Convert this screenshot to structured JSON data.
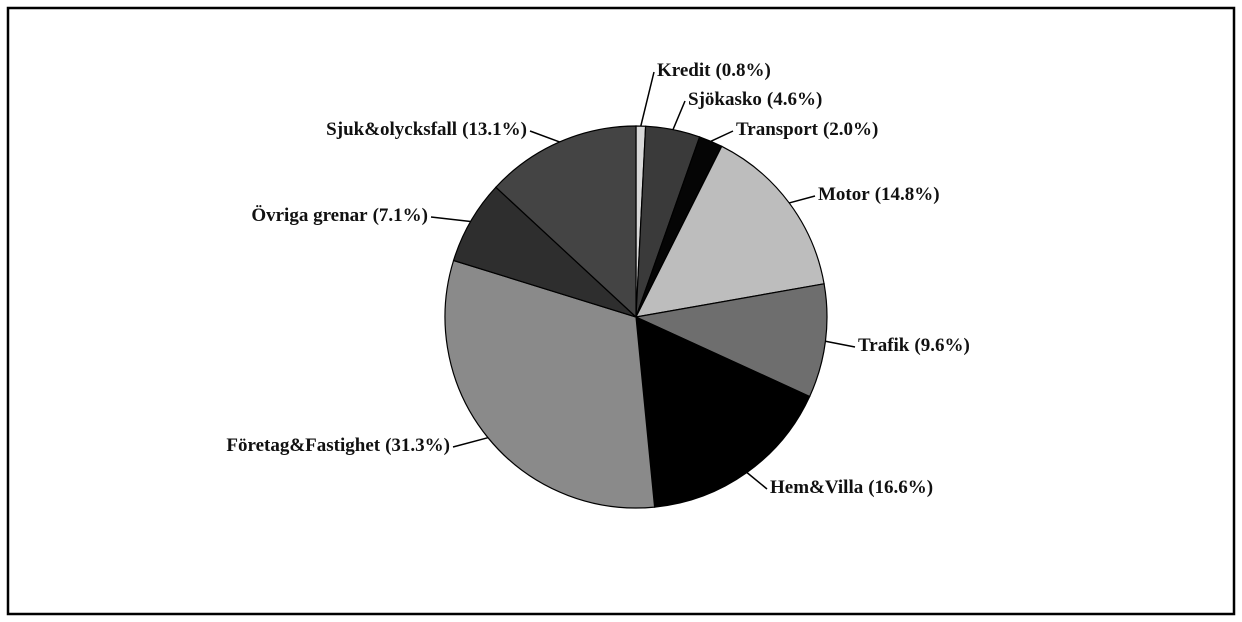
{
  "chart_data": {
    "type": "pie",
    "categories": [
      "Kredit",
      "Sjökasko",
      "Transport",
      "Motor",
      "Trafik",
      "Hem&Villa",
      "Företag&Fastighet",
      "Övriga grenar",
      "Sjuk&olycksfall"
    ],
    "values": [
      0.8,
      4.6,
      2.0,
      14.8,
      9.6,
      16.6,
      31.3,
      7.1,
      13.1
    ],
    "value_labels": [
      "(0.8%)",
      "(4.6%)",
      "(2.0%)",
      "(14.8%)",
      "(9.6%)",
      "(16.6%)",
      "(31.3%)",
      "(7.1%)",
      "(13.1%)"
    ],
    "colors": [
      "#d8d8d8",
      "#3a3a3a",
      "#050505",
      "#bdbdbd",
      "#6e6e6e",
      "#000000",
      "#8a8a8a",
      "#2e2e2e",
      "#444444"
    ]
  }
}
